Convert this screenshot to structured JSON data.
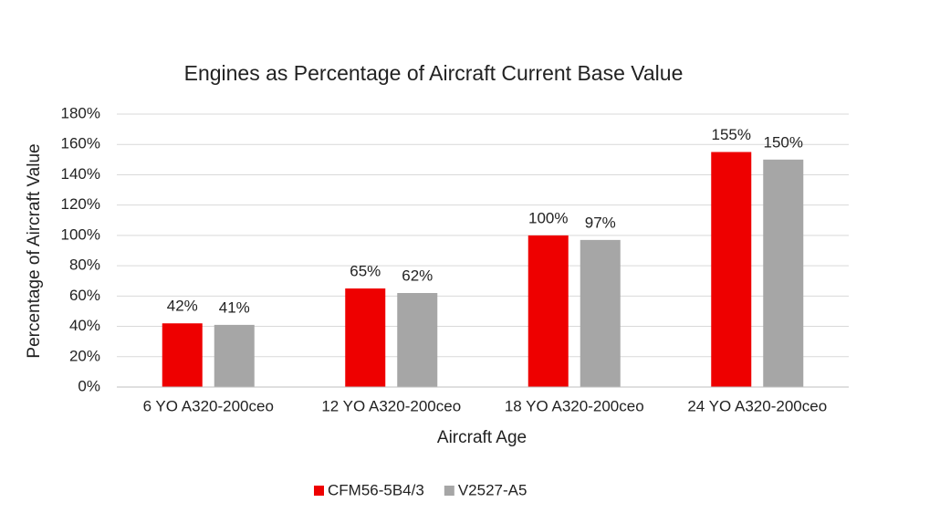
{
  "chart_data": {
    "type": "bar",
    "title": "Engines as Percentage of Aircraft Current Base Value",
    "x_label": "Aircraft Age",
    "y_label": "Percentage of Aircraft Value",
    "categories": [
      "6 YO A320-200ceo",
      "12 YO A320-200ceo",
      "18 YO A320-200ceo",
      "24 YO A320-200ceo"
    ],
    "series": [
      {
        "name": "CFM56-5B4/3",
        "color": "#ee0000",
        "values": [
          42,
          65,
          100,
          155
        ],
        "value_labels": [
          "42%",
          "65%",
          "100%",
          "155%"
        ]
      },
      {
        "name": "V2527-A5",
        "color": "#a6a6a6",
        "values": [
          41,
          62,
          97,
          150
        ],
        "value_labels": [
          "41%",
          "62%",
          "97%",
          "150%"
        ]
      }
    ],
    "ylim": [
      0,
      180
    ],
    "yticks": [
      {
        "value": 0,
        "label": "0%"
      },
      {
        "value": 20,
        "label": "20%"
      },
      {
        "value": 40,
        "label": "40%"
      },
      {
        "value": 60,
        "label": "60%"
      },
      {
        "value": 80,
        "label": "80%"
      },
      {
        "value": 100,
        "label": "100%"
      },
      {
        "value": 120,
        "label": "120%"
      },
      {
        "value": 140,
        "label": "140%"
      },
      {
        "value": 160,
        "label": "160%"
      },
      {
        "value": 180,
        "label": "180%"
      }
    ],
    "grid": true,
    "legend": "bottom"
  }
}
